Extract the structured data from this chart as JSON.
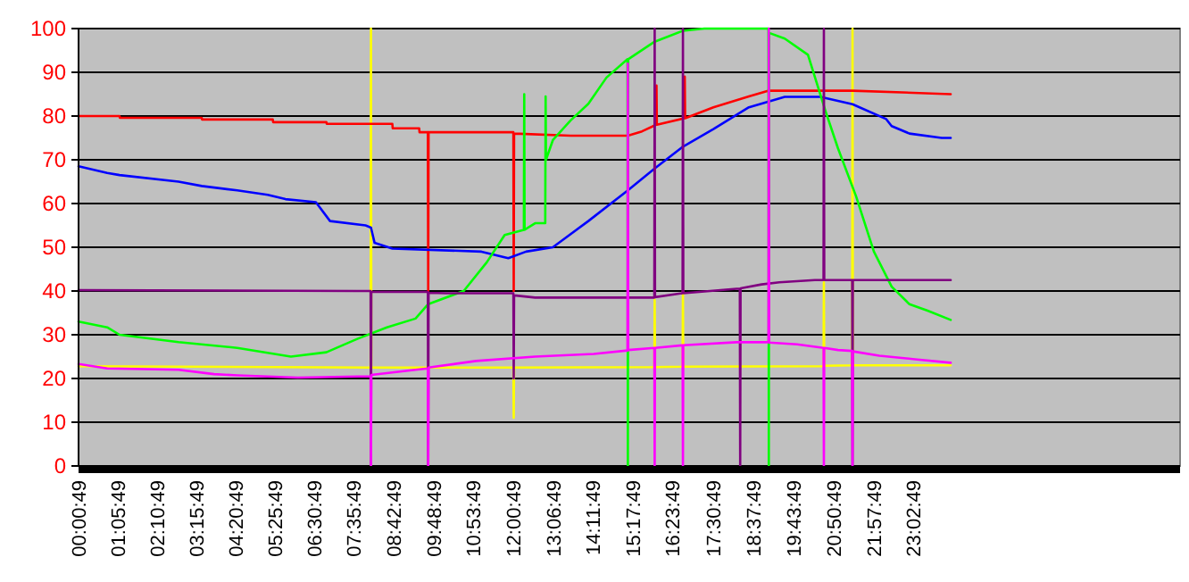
{
  "chart_data": {
    "type": "line",
    "xlim": [
      0,
      30.4
    ],
    "ylim": [
      0,
      100
    ],
    "yticks": [
      0,
      10,
      20,
      30,
      40,
      50,
      60,
      70,
      80,
      90,
      100
    ],
    "xticks": [
      {
        "value": 0.013611,
        "label": "00:00:49"
      },
      {
        "value": 1.096944,
        "label": "01:05:49"
      },
      {
        "value": 2.180278,
        "label": "02:10:49"
      },
      {
        "value": 3.263611,
        "label": "03:15:49"
      },
      {
        "value": 4.346944,
        "label": "04:20:49"
      },
      {
        "value": 5.430278,
        "label": "05:25:49"
      },
      {
        "value": 6.513611,
        "label": "06:30:49"
      },
      {
        "value": 7.596944,
        "label": "07:35:49"
      },
      {
        "value": 8.713611,
        "label": "08:42:49"
      },
      {
        "value": 9.813611,
        "label": "09:48:49"
      },
      {
        "value": 10.896944,
        "label": "10:53:49"
      },
      {
        "value": 12.013611,
        "label": "12:00:49"
      },
      {
        "value": 13.113611,
        "label": "13:06:49"
      },
      {
        "value": 14.196944,
        "label": "14:11:49"
      },
      {
        "value": 15.296944,
        "label": "15:17:49"
      },
      {
        "value": 16.396944,
        "label": "16:23:49"
      },
      {
        "value": 17.513611,
        "label": "17:30:49"
      },
      {
        "value": 18.630278,
        "label": "18:37:49"
      },
      {
        "value": 19.730278,
        "label": "19:43:49"
      },
      {
        "value": 20.846944,
        "label": "20:50:49"
      },
      {
        "value": 21.963611,
        "label": "21:57:49"
      },
      {
        "value": 23.046944,
        "label": "23:02:49"
      }
    ],
    "grid": "y",
    "marker": "none",
    "line_style": "solid",
    "series": [
      {
        "color": "#ffff00",
        "x": [
          0,
          8.06,
          8.07,
          8.08,
          12.0,
          12.01,
          12.02,
          15.89,
          15.9,
          15.91,
          16.67,
          16.68,
          16.69,
          20.56,
          20.57,
          20.58,
          21.35,
          21.36,
          21.37,
          24.07
        ],
        "values": [
          22.8,
          22.5,
          100,
          22.5,
          22.5,
          11,
          22.5,
          22.6,
          38,
          22.6,
          22.7,
          40,
          22.7,
          22.8,
          42,
          22.9,
          23,
          100,
          23,
          23
        ]
      },
      {
        "color": "#ff0000",
        "x": [
          0,
          1.13,
          1.14,
          3.4,
          3.41,
          5.36,
          5.37,
          6.84,
          6.85,
          8.66,
          8.67,
          9.4,
          9.41,
          9.64,
          9.65,
          9.66,
          12.0,
          12.01,
          12.02,
          13.58,
          15.16,
          15.55,
          15.94,
          15.95,
          15.96,
          16.72,
          16.73,
          16.74,
          17.52,
          18.5,
          19.05,
          21.36,
          24.07
        ],
        "values": [
          80,
          80,
          79.6,
          79.6,
          79.2,
          79.2,
          78.6,
          78.6,
          78.2,
          78.2,
          77.2,
          77.2,
          76.3,
          76.3,
          40,
          76.3,
          76.3,
          40,
          76,
          75.5,
          75.5,
          76.5,
          78,
          87,
          78,
          79.5,
          89,
          79.5,
          82,
          84.5,
          85.8,
          85.8,
          85
        ]
      },
      {
        "color": "#0000ff",
        "x": [
          0,
          0.79,
          1.13,
          2.76,
          3.4,
          4.38,
          5.22,
          5.71,
          6.55,
          6.94,
          7.92,
          8.07,
          8.17,
          8.66,
          11.12,
          11.86,
          12.35,
          13.09,
          14.07,
          15.16,
          15.9,
          16.68,
          17.52,
          18.5,
          19.49,
          20.47,
          21.36,
          22.29,
          22.44,
          22.93,
          23.82,
          24.07
        ],
        "values": [
          68.5,
          67,
          66.5,
          65,
          64,
          63,
          62,
          61,
          60.3,
          56,
          55,
          54.5,
          51,
          49.7,
          49,
          47.5,
          49,
          50,
          56,
          63,
          68,
          73,
          77,
          82,
          84.4,
          84.4,
          82.7,
          79.3,
          77.7,
          76,
          75,
          75
        ]
      },
      {
        "color": "#00ff00",
        "x": [
          0,
          0.79,
          1.13,
          2.76,
          4.38,
          5.86,
          6.84,
          7.68,
          8.51,
          9.3,
          9.65,
          10.63,
          11.27,
          11.76,
          12.29,
          12.3,
          12.31,
          12.6,
          12.88,
          12.89,
          12.9,
          13.09,
          13.58,
          14.07,
          14.57,
          15.15,
          15.16,
          15.17,
          15.9,
          16.68,
          17.27,
          19.04,
          19.05,
          19.06,
          19.49,
          20.13,
          20.62,
          20.96,
          21.46,
          21.95,
          22.44,
          22.93,
          23.43,
          24.07
        ],
        "values": [
          33,
          31.7,
          30,
          28.3,
          27,
          25,
          26,
          29,
          31.7,
          33.7,
          37,
          40,
          46.6,
          52.8,
          54,
          85,
          54,
          55.5,
          55.5,
          84.5,
          70,
          74.5,
          79,
          82.8,
          88.8,
          93,
          0,
          93,
          97,
          99.5,
          100,
          100,
          0,
          99,
          97.7,
          94,
          81,
          72.6,
          61.6,
          49,
          41,
          37,
          35.5,
          33.4
        ]
      },
      {
        "color": "#800080",
        "x": [
          0,
          7.68,
          8.06,
          8.07,
          8.08,
          9.64,
          9.65,
          9.66,
          10.14,
          12.0,
          12.01,
          12.02,
          12.6,
          15.89,
          15.9,
          15.91,
          16.67,
          16.68,
          16.69,
          18.16,
          18.25,
          18.26,
          18.27,
          18.85,
          19.34,
          20.32,
          20.56,
          20.57,
          20.58,
          21.35,
          21.36,
          21.37,
          24.07
        ],
        "values": [
          40.2,
          40,
          40,
          0,
          39.8,
          39.8,
          0,
          39.6,
          39.5,
          39.5,
          20,
          39,
          38.5,
          38.5,
          100,
          38.6,
          39.5,
          100,
          39.5,
          40.5,
          40.5,
          0,
          40.6,
          41.5,
          42,
          42.5,
          42.5,
          100,
          42.5,
          42.5,
          0,
          42.5,
          42.5
        ]
      },
      {
        "color": "#ff00ff",
        "x": [
          0,
          0.79,
          2.76,
          3.74,
          4.38,
          6.05,
          8.06,
          8.07,
          8.08,
          9.3,
          9.64,
          9.65,
          9.66,
          10.97,
          12.6,
          14.22,
          15.15,
          15.16,
          15.17,
          15.89,
          15.9,
          15.91,
          16.67,
          16.68,
          16.69,
          18.16,
          19.04,
          19.05,
          19.06,
          19.83,
          20.56,
          20.57,
          20.58,
          20.96,
          21.35,
          21.36,
          21.37,
          22.1,
          23.08,
          24.07
        ],
        "values": [
          23.3,
          22.3,
          22,
          21,
          20.7,
          20.2,
          20.5,
          0,
          20.8,
          22,
          22.3,
          0,
          22.5,
          24,
          25,
          25.6,
          26.4,
          92,
          26.5,
          27,
          0,
          27,
          27.6,
          0,
          27.6,
          28.3,
          28.3,
          100,
          28.2,
          27.8,
          27,
          0,
          27,
          26.5,
          26.3,
          0,
          26.2,
          25.2,
          24.4,
          23.6
        ]
      }
    ]
  }
}
